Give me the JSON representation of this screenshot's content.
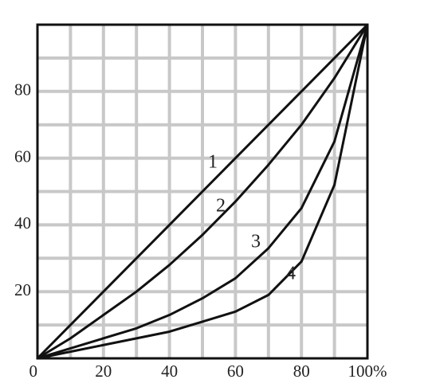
{
  "chart_data": {
    "type": "line",
    "x": [
      0,
      10,
      20,
      30,
      40,
      50,
      60,
      70,
      80,
      90,
      100
    ],
    "series": [
      {
        "name": "1",
        "color": "#111111",
        "values": [
          0,
          10,
          20,
          30,
          40,
          50,
          60,
          70,
          80,
          90,
          100
        ]
      },
      {
        "name": "2",
        "color": "#111111",
        "values": [
          0,
          6,
          13,
          20,
          28,
          37,
          47,
          58,
          70,
          84,
          100
        ]
      },
      {
        "name": "3",
        "color": "#111111",
        "values": [
          0,
          3,
          6,
          9,
          13,
          18,
          24,
          33,
          45,
          65,
          100
        ]
      },
      {
        "name": "4",
        "color": "#111111",
        "values": [
          0,
          2,
          4,
          6,
          8,
          11,
          14,
          19,
          29,
          52,
          100
        ]
      }
    ],
    "xlim": [
      0,
      100
    ],
    "ylim": [
      0,
      100
    ],
    "xticks": [
      0,
      20,
      40,
      60,
      80,
      {
        "value": 100,
        "label": "100%"
      }
    ],
    "yticks": [
      20,
      40,
      60,
      80
    ],
    "grid_lines": [
      10,
      20,
      30,
      40,
      50,
      60,
      70,
      80,
      90
    ],
    "grid": true
  }
}
